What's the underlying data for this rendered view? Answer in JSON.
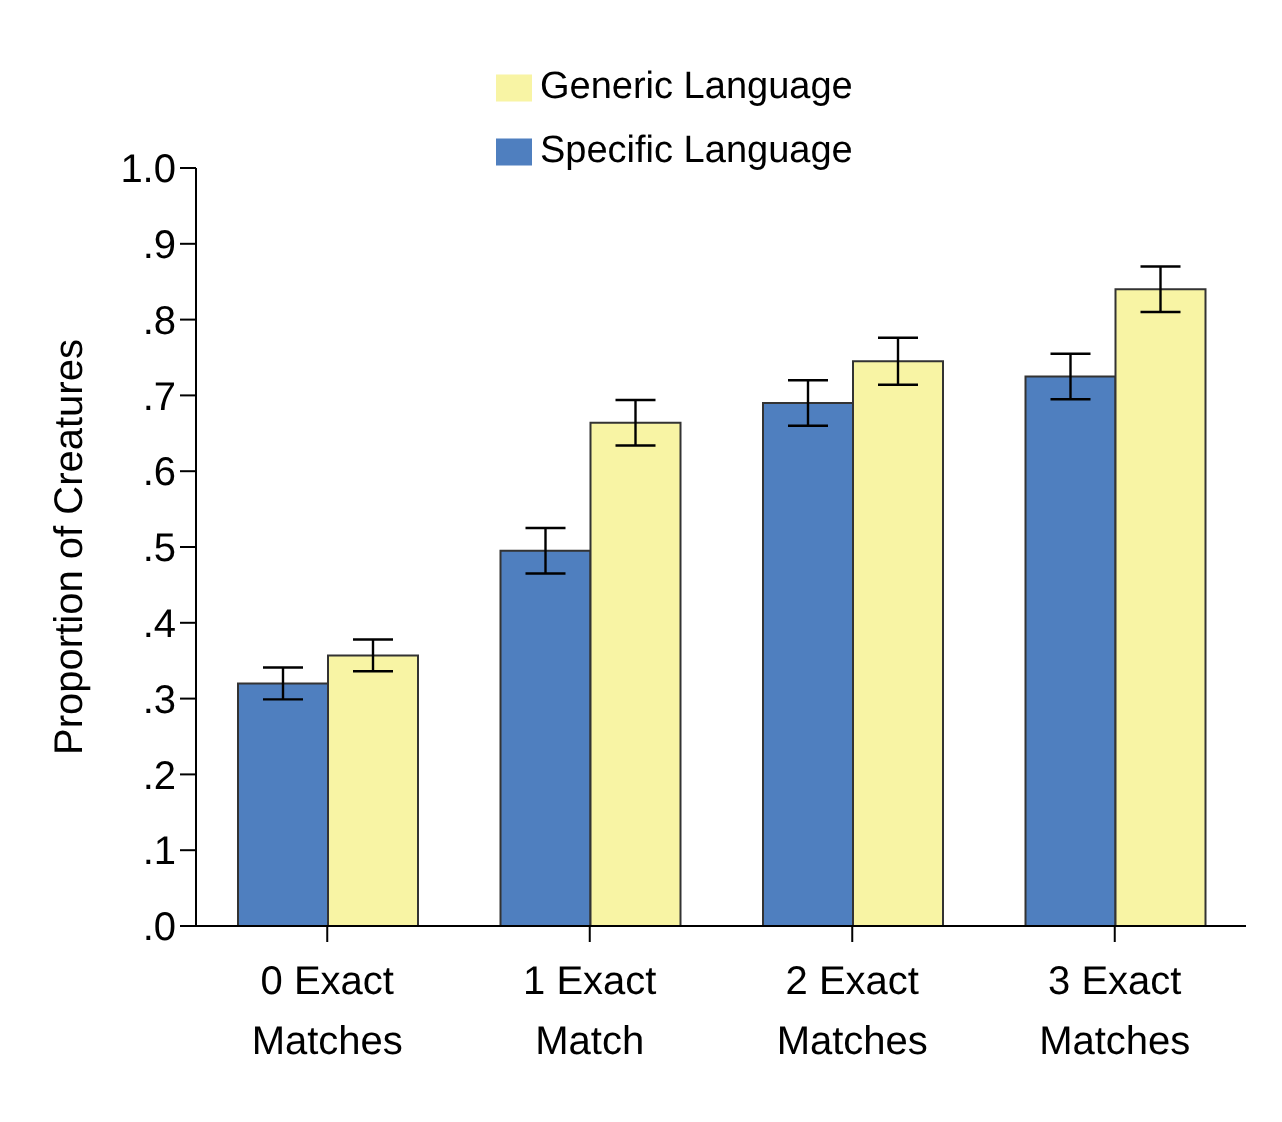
{
  "chart_data": {
    "type": "bar",
    "ylabel": "Proportion of Creatures",
    "categories": [
      "0 Exact Matches",
      "1 Exact Match",
      "2 Exact Matches",
      "3 Exact Matches"
    ],
    "series": [
      {
        "name": "Specific Language",
        "color": "#4f7fbf",
        "values": [
          0.32,
          0.495,
          0.69,
          0.725
        ],
        "errors": [
          0.021,
          0.03,
          0.03,
          0.03
        ]
      },
      {
        "name": "Generic Language",
        "color": "#f8f4a4",
        "values": [
          0.357,
          0.664,
          0.745,
          0.84
        ],
        "errors": [
          0.021,
          0.03,
          0.031,
          0.03
        ]
      }
    ],
    "ylim": [
      0,
      1
    ],
    "yticks": [
      {
        "value": 0,
        "label": ".0"
      },
      {
        "value": 0.1,
        "label": ".1"
      },
      {
        "value": 0.2,
        "label": ".2"
      },
      {
        "value": 0.3,
        "label": ".3"
      },
      {
        "value": 0.4,
        "label": ".4"
      },
      {
        "value": 0.5,
        "label": ".5"
      },
      {
        "value": 0.6,
        "label": ".6"
      },
      {
        "value": 0.7,
        "label": ".7"
      },
      {
        "value": 0.8,
        "label": ".8"
      },
      {
        "value": 0.9,
        "label": ".9"
      },
      {
        "value": 1,
        "label": "1.0"
      }
    ],
    "grid": false,
    "legend": "top"
  }
}
